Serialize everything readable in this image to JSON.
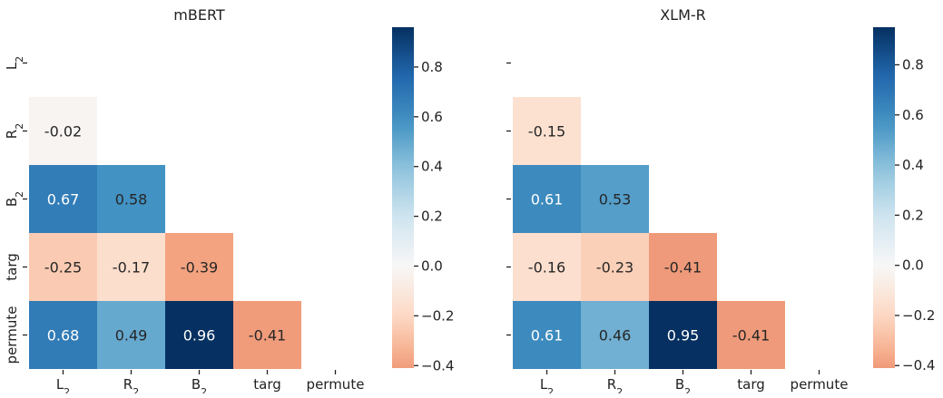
{
  "chart_data": [
    {
      "type": "heatmap",
      "title": "mBERT",
      "row_labels": [
        "L2",
        "R2",
        "B2",
        "targ",
        "permute"
      ],
      "col_labels": [
        "L2",
        "R2",
        "B2",
        "targ",
        "permute"
      ],
      "values": [
        [
          null,
          null,
          null,
          null,
          null
        ],
        [
          -0.02,
          null,
          null,
          null,
          null
        ],
        [
          0.67,
          0.58,
          null,
          null,
          null
        ],
        [
          -0.25,
          -0.17,
          -0.39,
          null,
          null
        ],
        [
          0.68,
          0.49,
          0.96,
          -0.41,
          null
        ]
      ],
      "labels": [
        [
          null,
          null,
          null,
          null,
          null
        ],
        [
          "-0.02",
          null,
          null,
          null,
          null
        ],
        [
          "0.67",
          "0.58",
          null,
          null,
          null
        ],
        [
          "-0.25",
          "-0.17",
          "-0.39",
          null,
          null
        ],
        [
          "0.68",
          "0.49",
          "0.96",
          "-0.41",
          null
        ]
      ],
      "mask": "upper-triangle-including-diagonal",
      "colorbar": {
        "vmin": -0.41,
        "vmax": 0.96,
        "center": 0,
        "ticks": [
          "−0.4",
          "−0.2",
          "0.0",
          "0.2",
          "0.4",
          "0.6",
          "0.8"
        ]
      },
      "colormap": "RdBu"
    },
    {
      "type": "heatmap",
      "title": "XLM-R",
      "row_labels": [
        "L2",
        "R2",
        "B2",
        "targ",
        "permute"
      ],
      "col_labels": [
        "L2",
        "R2",
        "B2",
        "targ",
        "permute"
      ],
      "values": [
        [
          null,
          null,
          null,
          null,
          null
        ],
        [
          -0.15,
          null,
          null,
          null,
          null
        ],
        [
          0.61,
          0.53,
          null,
          null,
          null
        ],
        [
          -0.16,
          -0.23,
          -0.41,
          null,
          null
        ],
        [
          0.61,
          0.46,
          0.95,
          -0.41,
          null
        ]
      ],
      "labels": [
        [
          null,
          null,
          null,
          null,
          null
        ],
        [
          "-0.15",
          null,
          null,
          null,
          null
        ],
        [
          "0.61",
          "0.53",
          null,
          null,
          null
        ],
        [
          "-0.16",
          "-0.23",
          "-0.41",
          null,
          null
        ],
        [
          "0.61",
          "0.46",
          "0.95",
          "-0.41",
          null
        ]
      ],
      "mask": "upper-triangle-including-diagonal",
      "colorbar": {
        "vmin": -0.41,
        "vmax": 0.95,
        "center": 0,
        "ticks": [
          "−0.4",
          "−0.2",
          "0.0",
          "0.2",
          "0.4",
          "0.6",
          "0.8"
        ]
      },
      "colormap": "RdBu"
    }
  ]
}
